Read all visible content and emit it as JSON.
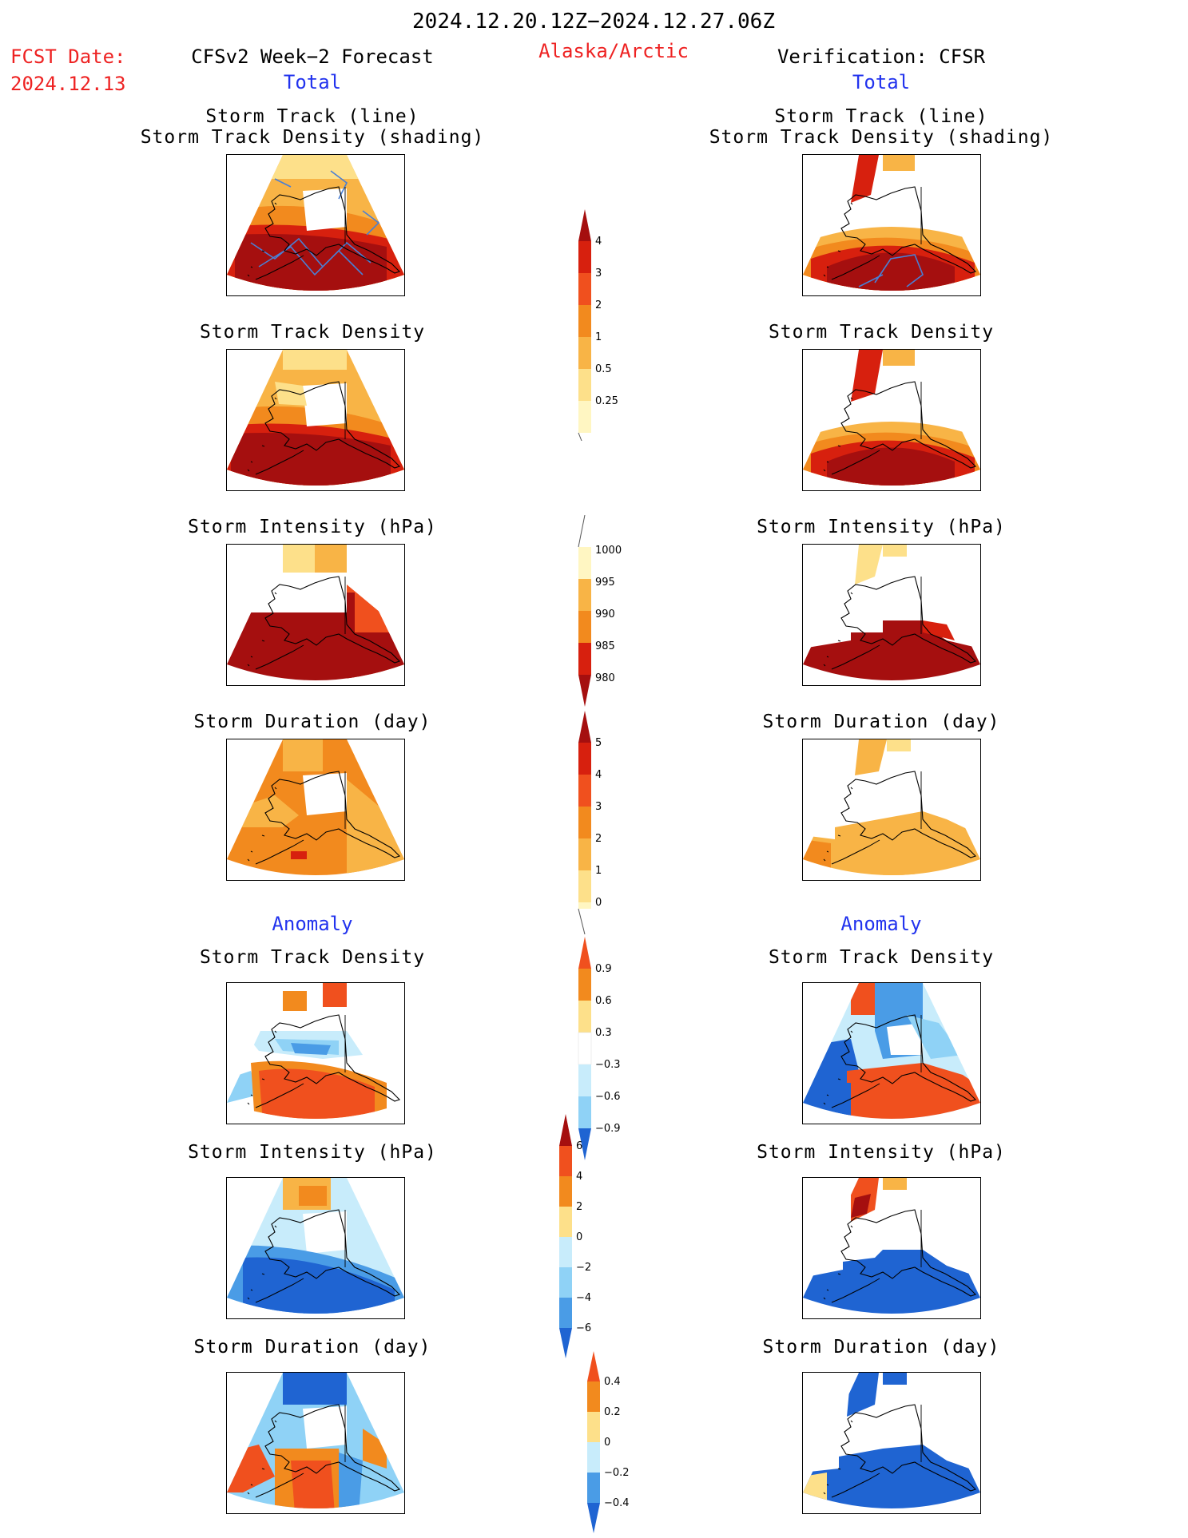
{
  "header": {
    "date_range": "2024.12.20.12Z−2024.12.27.06Z",
    "fcst_label": "FCST Date:",
    "fcst_date": "2024.12.13",
    "forecast_title": "CFSv2 Week−2 Forecast",
    "region": "Alaska/Arctic",
    "verification_title": "Verification: CFSR"
  },
  "sections": {
    "total": "Total",
    "anomaly": "Anomaly"
  },
  "panel_titles": {
    "track_line": "Storm Track (line)",
    "track_shading": "Storm Track Density (shading)",
    "density": "Storm Track Density",
    "intensity": "Storm Intensity (hPa)",
    "duration": "Storm Duration (day)"
  },
  "colors": {
    "title_red": "#ee2222",
    "section_blue": "#2233ee",
    "dark_red": "#a50f0f",
    "red": "#d7200e",
    "red_orange": "#f0501e",
    "orange": "#f28a1e",
    "light_orange": "#f8b446",
    "yellow": "#fde08a",
    "pale_yellow": "#fff6c2",
    "pale_blue": "#c8ecfb",
    "light_blue": "#8fd2f6",
    "mid_blue": "#4a9ce6",
    "blue": "#1f64d2",
    "track_line": "#4a7fd4"
  },
  "colorbars": {
    "total_density": {
      "labels": [
        "4",
        "3",
        "2",
        "1",
        "0.5",
        "0.25"
      ]
    },
    "total_intensity": {
      "labels": [
        "1000",
        "995",
        "990",
        "985",
        "980"
      ]
    },
    "total_duration": {
      "labels": [
        "5",
        "4",
        "3",
        "2",
        "1",
        "0"
      ]
    },
    "anom_density": {
      "labels": [
        "0.9",
        "0.6",
        "0.3",
        "−0.3",
        "−0.6",
        "−0.9"
      ]
    },
    "anom_intensity": {
      "labels": [
        "6",
        "4",
        "2",
        "0",
        "−2",
        "−4",
        "−6"
      ]
    },
    "anom_duration": {
      "labels": [
        "0.4",
        "0.2",
        "0",
        "−0.2",
        "−0.4"
      ]
    }
  }
}
